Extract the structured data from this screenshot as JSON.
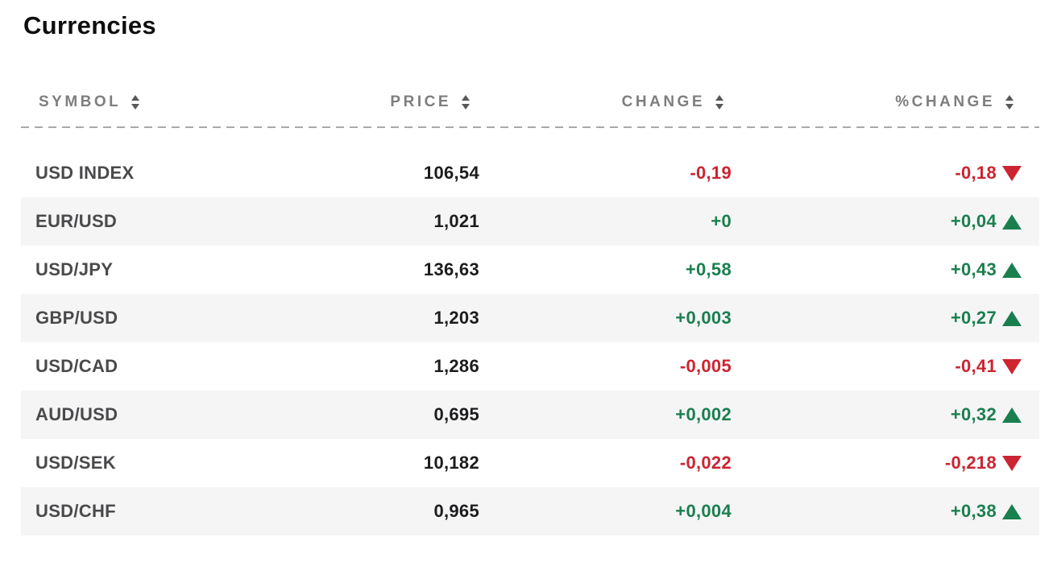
{
  "title": "Currencies",
  "theme": {
    "colors": {
      "positive": "#1a7f4e",
      "negative": "#cc2430",
      "header-text": "#7e7e80",
      "symbol-text": "#4a4a4c",
      "price-text": "#1c1c1e",
      "row-alt-bg": "#f5f5f6",
      "sort-icon": "#58585a",
      "divider": "#a9a9a9"
    }
  },
  "table": {
    "columns": [
      {
        "label": "SYMBOL"
      },
      {
        "label": "PRICE"
      },
      {
        "label": "CHANGE"
      },
      {
        "label": "%CHANGE"
      }
    ],
    "rows": [
      {
        "symbol": "USD INDEX",
        "price": "106,54",
        "change": "-0,19",
        "percent_change": "-0,18",
        "direction": "down"
      },
      {
        "symbol": "EUR/USD",
        "price": "1,021",
        "change": "+0",
        "percent_change": "+0,04",
        "direction": "up"
      },
      {
        "symbol": "USD/JPY",
        "price": "136,63",
        "change": "+0,58",
        "percent_change": "+0,43",
        "direction": "up"
      },
      {
        "symbol": "GBP/USD",
        "price": "1,203",
        "change": "+0,003",
        "percent_change": "+0,27",
        "direction": "up"
      },
      {
        "symbol": "USD/CAD",
        "price": "1,286",
        "change": "-0,005",
        "percent_change": "-0,41",
        "direction": "down"
      },
      {
        "symbol": "AUD/USD",
        "price": "0,695",
        "change": "+0,002",
        "percent_change": "+0,32",
        "direction": "up"
      },
      {
        "symbol": "USD/SEK",
        "price": "10,182",
        "change": "-0,022",
        "percent_change": "-0,218",
        "direction": "down"
      },
      {
        "symbol": "USD/CHF",
        "price": "0,965",
        "change": "+0,004",
        "percent_change": "+0,38",
        "direction": "up"
      }
    ]
  }
}
